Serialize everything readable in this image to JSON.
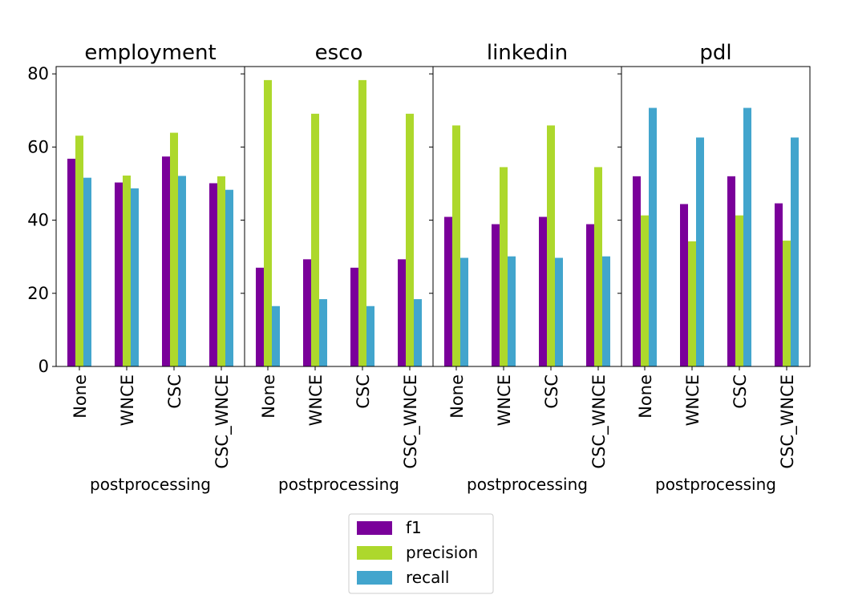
{
  "chart_data": {
    "type": "bar",
    "ylim": [
      0,
      82
    ],
    "yticks": [
      "0",
      "20",
      "40",
      "60",
      "80"
    ],
    "ytick_values": [
      0,
      20,
      40,
      60,
      80
    ],
    "categories": [
      "None",
      "WNCE",
      "CSC",
      "CSC_WNCE"
    ],
    "xlabel": "postprocessing",
    "legend": {
      "position": "bottom-center",
      "entries": [
        "f1",
        "precision",
        "recall"
      ]
    },
    "colors": {
      "f1": "#7a009a",
      "precision": "#add82c",
      "recall": "#42a5cd"
    },
    "panels": [
      {
        "title": "employment",
        "series": [
          {
            "name": "f1",
            "values": [
              56.8,
              50.3,
              57.4,
              50.1
            ]
          },
          {
            "name": "precision",
            "values": [
              63.1,
              52.2,
              63.9,
              52.0
            ]
          },
          {
            "name": "recall",
            "values": [
              51.6,
              48.7,
              52.1,
              48.3
            ]
          }
        ]
      },
      {
        "title": "esco",
        "series": [
          {
            "name": "f1",
            "values": [
              27.0,
              29.3,
              27.0,
              29.3
            ]
          },
          {
            "name": "precision",
            "values": [
              78.3,
              69.1,
              78.3,
              69.1
            ]
          },
          {
            "name": "recall",
            "values": [
              16.5,
              18.4,
              16.5,
              18.4
            ]
          }
        ]
      },
      {
        "title": "linkedin",
        "series": [
          {
            "name": "f1",
            "values": [
              40.9,
              38.9,
              40.9,
              38.9
            ]
          },
          {
            "name": "precision",
            "values": [
              65.9,
              54.5,
              65.9,
              54.5
            ]
          },
          {
            "name": "recall",
            "values": [
              29.7,
              30.1,
              29.7,
              30.1
            ]
          }
        ]
      },
      {
        "title": "pdl",
        "series": [
          {
            "name": "f1",
            "values": [
              52.0,
              44.4,
              52.0,
              44.6
            ]
          },
          {
            "name": "precision",
            "values": [
              41.3,
              34.2,
              41.3,
              34.4
            ]
          },
          {
            "name": "recall",
            "values": [
              70.7,
              62.6,
              70.7,
              62.6
            ]
          }
        ]
      }
    ]
  }
}
